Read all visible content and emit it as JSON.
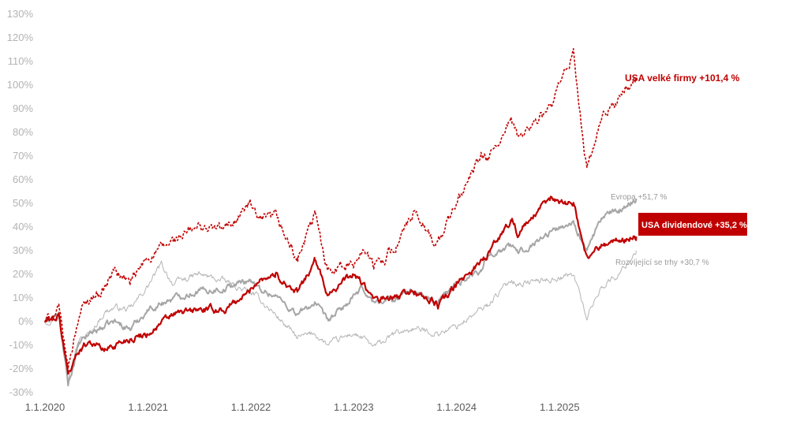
{
  "chart_data": {
    "type": "line",
    "xlim": [
      "2020-01-01",
      "2025-10-10"
    ],
    "ylim": [
      -30,
      130
    ],
    "ytick_values": [
      -30,
      -20,
      -10,
      0,
      10,
      20,
      30,
      40,
      50,
      60,
      70,
      80,
      90,
      100,
      110,
      120,
      130
    ],
    "ytick_labels": [
      "-30%",
      "-20%",
      "-10%",
      "0%",
      "10%",
      "20%",
      "30%",
      "40%",
      "50%",
      "60%",
      "70%",
      "80%",
      "90%",
      "100%",
      "110%",
      "120%",
      "130%"
    ],
    "xtick_dates": [
      "2020-01-01",
      "2021-01-01",
      "2022-01-01",
      "2023-01-01",
      "2024-01-01",
      "2025-01-01"
    ],
    "xtick_labels": [
      "1.1.2020",
      "1.1.2021",
      "1.1.2022",
      "1.1.2023",
      "1.1.2024",
      "1.1.2025"
    ],
    "grid": false,
    "legend": "none (direct labels)",
    "colors": {
      "usa_large": "#c00000",
      "usa_dividend": "#c00000",
      "europe": "#a6a6a6",
      "emerging": "#b4b4b4",
      "axis_tick": "#b3b3b3",
      "x_tick": "#5a5a5a"
    },
    "series": [
      {
        "key": "usa_large",
        "style": "dashed",
        "x": [
          "2020-01-01",
          "2020-02-19",
          "2020-03-23",
          "2020-04-30",
          "2020-06-08",
          "2020-07-31",
          "2020-09-02",
          "2020-10-30",
          "2020-12-31",
          "2021-03-31",
          "2021-06-30",
          "2021-09-30",
          "2021-12-31",
          "2022-01-27",
          "2022-03-29",
          "2022-06-16",
          "2022-08-16",
          "2022-09-30",
          "2022-12-31",
          "2023-02-02",
          "2023-03-13",
          "2023-05-31",
          "2023-07-31",
          "2023-10-27",
          "2023-12-31",
          "2024-03-28",
          "2024-04-19",
          "2024-07-16",
          "2024-08-05",
          "2024-11-30",
          "2025-02-19",
          "2025-04-08",
          "2025-05-30",
          "2025-07-31",
          "2025-09-30"
        ],
        "y": [
          0,
          5,
          -20,
          3,
          10,
          14,
          22,
          16,
          27,
          34,
          40,
          39,
          50,
          42,
          44,
          26,
          45,
          23,
          24,
          32,
          23,
          32,
          45,
          33,
          50,
          70,
          68,
          84,
          78,
          90,
          113,
          64,
          85,
          95,
          102
        ]
      },
      {
        "key": "usa_dividend",
        "style": "solid",
        "x": [
          "2020-01-01",
          "2020-02-19",
          "2020-03-23",
          "2020-04-30",
          "2020-06-08",
          "2020-07-31",
          "2020-09-02",
          "2020-10-30",
          "2020-12-31",
          "2021-03-31",
          "2021-06-30",
          "2021-09-30",
          "2021-12-31",
          "2022-01-27",
          "2022-03-29",
          "2022-06-16",
          "2022-08-16",
          "2022-09-30",
          "2022-12-31",
          "2023-02-02",
          "2023-03-13",
          "2023-05-31",
          "2023-07-31",
          "2023-10-27",
          "2023-12-31",
          "2024-03-28",
          "2024-04-19",
          "2024-07-16",
          "2024-08-05",
          "2024-11-30",
          "2025-02-19",
          "2025-04-08",
          "2025-05-30",
          "2025-07-31",
          "2025-09-30"
        ],
        "y": [
          0,
          2,
          -22,
          -12,
          -8,
          -12,
          -10,
          -7,
          -5,
          3,
          5,
          5,
          13,
          18,
          20,
          12,
          26,
          12,
          20,
          16,
          9,
          10,
          13,
          7,
          15,
          26,
          28,
          44,
          37,
          52,
          50,
          27,
          33,
          34,
          36
        ]
      },
      {
        "key": "europe",
        "style": "solid",
        "x": [
          "2020-01-01",
          "2020-02-19",
          "2020-03-23",
          "2020-04-30",
          "2020-06-08",
          "2020-07-31",
          "2020-09-02",
          "2020-10-30",
          "2020-12-31",
          "2021-03-31",
          "2021-06-30",
          "2021-09-30",
          "2021-12-31",
          "2022-01-27",
          "2022-03-29",
          "2022-06-16",
          "2022-08-16",
          "2022-09-30",
          "2022-12-31",
          "2023-02-02",
          "2023-03-13",
          "2023-05-31",
          "2023-07-31",
          "2023-10-27",
          "2023-12-31",
          "2024-03-28",
          "2024-04-19",
          "2024-07-16",
          "2024-08-05",
          "2024-11-30",
          "2025-02-19",
          "2025-04-08",
          "2025-05-30",
          "2025-07-31",
          "2025-09-30"
        ],
        "y": [
          0,
          3,
          -27,
          -10,
          -5,
          -2,
          0,
          -3,
          5,
          10,
          13,
          14,
          18,
          14,
          11,
          3,
          8,
          0,
          10,
          14,
          8,
          10,
          13,
          8,
          16,
          22,
          28,
          32,
          29,
          38,
          42,
          30,
          44,
          47,
          52
        ]
      },
      {
        "key": "emerging",
        "style": "solid",
        "x": [
          "2020-01-01",
          "2020-02-19",
          "2020-03-23",
          "2020-04-30",
          "2020-06-08",
          "2020-07-31",
          "2020-09-02",
          "2020-10-30",
          "2020-12-31",
          "2021-02-17",
          "2021-03-31",
          "2021-06-30",
          "2021-09-30",
          "2021-12-31",
          "2022-01-27",
          "2022-03-29",
          "2022-06-16",
          "2022-08-16",
          "2022-09-30",
          "2022-12-31",
          "2023-02-02",
          "2023-03-13",
          "2023-05-31",
          "2023-07-31",
          "2023-10-27",
          "2023-12-31",
          "2024-03-28",
          "2024-04-19",
          "2024-07-16",
          "2024-08-05",
          "2024-11-30",
          "2025-02-19",
          "2025-04-08",
          "2025-05-30",
          "2025-07-31",
          "2025-09-30"
        ],
        "y": [
          0,
          2,
          -22,
          -8,
          -5,
          4,
          6,
          5,
          15,
          24,
          16,
          20,
          17,
          12,
          10,
          3,
          -7,
          -5,
          -10,
          -5,
          -7,
          -11,
          -5,
          -3,
          -5,
          -2,
          5,
          7,
          18,
          16,
          18,
          20,
          2,
          15,
          20,
          30
        ]
      }
    ],
    "annotations": [
      {
        "key": "usa_large",
        "text": "USA velké firmy +101,4 %"
      },
      {
        "key": "europe",
        "text": "Evropa +51,7 %"
      },
      {
        "key": "usa_dividend",
        "text": "USA dividendové +35,2 %"
      },
      {
        "key": "emerging",
        "text": "Rozvíjející se trhy +30,7 %"
      }
    ]
  }
}
